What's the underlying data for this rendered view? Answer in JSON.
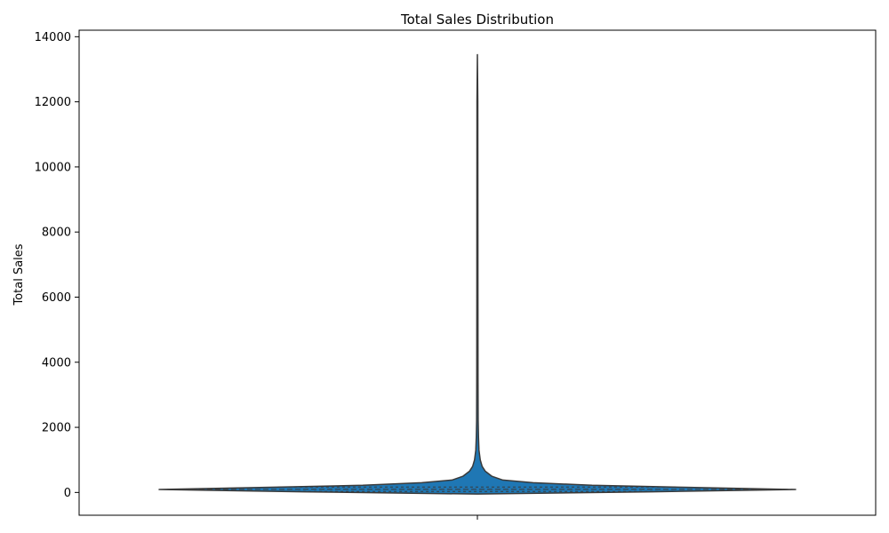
{
  "chart_data": {
    "type": "violin",
    "title": "Total Sales Distribution",
    "xlabel": "",
    "ylabel": "Total Sales",
    "ylim": [
      -700,
      14200
    ],
    "yticks": [
      0,
      2000,
      4000,
      6000,
      8000,
      10000,
      12000,
      14000
    ],
    "ytick_labels": [
      "0",
      "2000",
      "4000",
      "6000",
      "8000",
      "10000",
      "12000",
      "14000"
    ],
    "grid": false,
    "colors": {
      "fill": "#1f77b4",
      "edge": "#3a3a3a",
      "axis": "#000000"
    },
    "violin": {
      "min": -50,
      "max": 13450,
      "median": 95,
      "q1": 30,
      "q3": 165,
      "density_profile": [
        {
          "y": -50,
          "w": 0.0
        },
        {
          "y": 20,
          "w": 0.55
        },
        {
          "y": 90,
          "w": 1.0
        },
        {
          "y": 160,
          "w": 0.65
        },
        {
          "y": 220,
          "w": 0.36
        },
        {
          "y": 300,
          "w": 0.175
        },
        {
          "y": 380,
          "w": 0.08
        },
        {
          "y": 500,
          "w": 0.045
        },
        {
          "y": 650,
          "w": 0.025
        },
        {
          "y": 800,
          "w": 0.015
        },
        {
          "y": 1000,
          "w": 0.009
        },
        {
          "y": 1300,
          "w": 0.005
        },
        {
          "y": 1700,
          "w": 0.0035
        },
        {
          "y": 2200,
          "w": 0.0025
        },
        {
          "y": 3500,
          "w": 0.002
        },
        {
          "y": 6000,
          "w": 0.0017
        },
        {
          "y": 9000,
          "w": 0.0015
        },
        {
          "y": 12000,
          "w": 0.0013
        },
        {
          "y": 13450,
          "w": 0.0
        }
      ]
    }
  }
}
